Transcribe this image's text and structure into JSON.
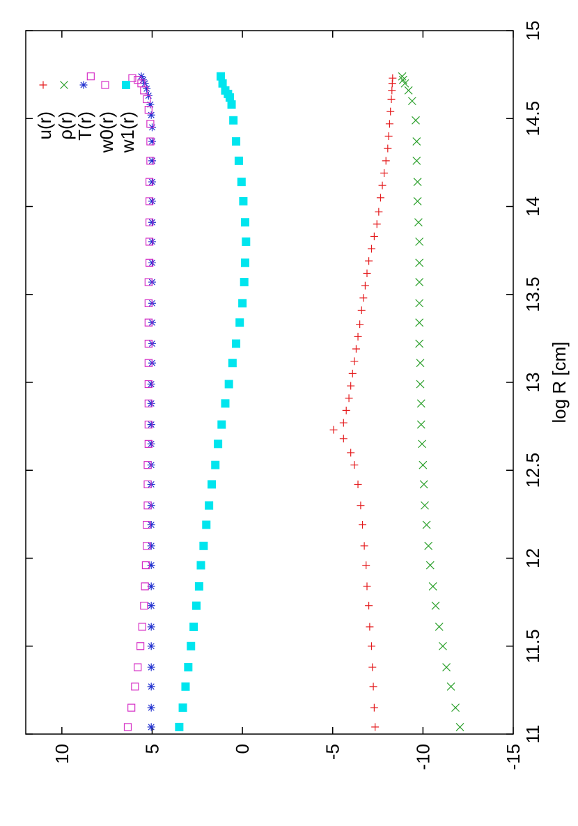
{
  "chart_data": {
    "type": "scatter",
    "rotated": "90deg clockwise (page in landscape orientation)",
    "xlabel": "log R [cm]",
    "ylabel": "",
    "xlim": [
      11,
      15
    ],
    "ylim": [
      -15,
      12
    ],
    "xticks": [
      "11",
      "11.5",
      "12",
      "12.5",
      "13",
      "13.5",
      "14",
      "14.5",
      "15"
    ],
    "yticks": [
      "-15",
      "-10",
      "-5",
      "0",
      "5",
      "10"
    ],
    "legend_position": "top-right",
    "series": [
      {
        "name": "u(r)",
        "marker": "plus",
        "color": "#e41a1c",
        "x": [
          11.04,
          11.15,
          11.27,
          11.38,
          11.5,
          11.61,
          11.73,
          11.84,
          11.96,
          12.07,
          12.19,
          12.3,
          12.42,
          12.53,
          12.6,
          12.68,
          12.73,
          12.77,
          12.84,
          12.91,
          12.98,
          13.05,
          13.12,
          13.19,
          13.26,
          13.33,
          13.41,
          13.48,
          13.55,
          13.62,
          13.69,
          13.76,
          13.83,
          13.9,
          13.97,
          14.05,
          14.12,
          14.19,
          14.26,
          14.33,
          14.4,
          14.47,
          14.54,
          14.61,
          14.66,
          14.7,
          14.73
        ],
        "y": [
          -7.35,
          -7.3,
          -7.25,
          -7.2,
          -7.15,
          -7.05,
          -7.0,
          -6.9,
          -6.85,
          -6.75,
          -6.65,
          -6.55,
          -6.4,
          -6.2,
          -6.0,
          -5.6,
          -5.05,
          -5.6,
          -5.75,
          -5.9,
          -6.0,
          -6.1,
          -6.2,
          -6.3,
          -6.4,
          -6.5,
          -6.6,
          -6.7,
          -6.8,
          -6.9,
          -7.0,
          -7.15,
          -7.3,
          -7.45,
          -7.55,
          -7.65,
          -7.75,
          -7.85,
          -7.95,
          -8.05,
          -8.1,
          -8.15,
          -8.2,
          -8.25,
          -8.28,
          -8.3,
          -8.32
        ]
      },
      {
        "name": "ρ(r)",
        "marker": "cross",
        "color": "#2ca02c",
        "x": [
          11.04,
          11.15,
          11.27,
          11.38,
          11.5,
          11.61,
          11.73,
          11.84,
          11.96,
          12.07,
          12.19,
          12.3,
          12.42,
          12.53,
          12.65,
          12.76,
          12.88,
          12.99,
          13.11,
          13.22,
          13.34,
          13.45,
          13.57,
          13.68,
          13.8,
          13.91,
          14.03,
          14.14,
          14.26,
          14.37,
          14.49,
          14.6,
          14.66,
          14.7,
          14.72,
          14.74
        ],
        "y": [
          -12.05,
          -11.8,
          -11.55,
          -11.3,
          -11.1,
          -10.9,
          -10.7,
          -10.55,
          -10.4,
          -10.3,
          -10.2,
          -10.1,
          -10.05,
          -10.0,
          -9.95,
          -9.9,
          -9.9,
          -9.85,
          -9.85,
          -9.8,
          -9.8,
          -9.8,
          -9.8,
          -9.8,
          -9.8,
          -9.75,
          -9.7,
          -9.7,
          -9.65,
          -9.65,
          -9.6,
          -9.4,
          -9.2,
          -9.0,
          -8.9,
          -8.85
        ]
      },
      {
        "name": "T(r)",
        "marker": "star",
        "color": "#1f2fcf",
        "x": [
          11.04,
          11.15,
          11.27,
          11.38,
          11.5,
          11.61,
          11.73,
          11.84,
          11.96,
          12.07,
          12.19,
          12.3,
          12.42,
          12.53,
          12.65,
          12.76,
          12.88,
          12.99,
          13.11,
          13.22,
          13.34,
          13.45,
          13.57,
          13.68,
          13.8,
          13.91,
          14.03,
          14.14,
          14.26,
          14.37,
          14.45,
          14.52,
          14.58,
          14.63,
          14.67,
          14.7,
          14.72,
          14.74
        ],
        "y": [
          5.05,
          5.05,
          5.05,
          5.05,
          5.05,
          5.05,
          5.05,
          5.05,
          5.05,
          5.05,
          5.05,
          5.05,
          5.05,
          5.05,
          5.05,
          5.05,
          5.05,
          5.05,
          5.0,
          5.0,
          5.0,
          5.0,
          5.0,
          5.0,
          5.0,
          5.0,
          5.0,
          5.0,
          5.0,
          5.0,
          5.0,
          5.05,
          5.1,
          5.2,
          5.3,
          5.4,
          5.5,
          5.6
        ]
      },
      {
        "name": "w0(r)",
        "marker": "square-open",
        "color": "#d62fc6",
        "x": [
          11.04,
          11.15,
          11.27,
          11.38,
          11.5,
          11.61,
          11.73,
          11.84,
          11.96,
          12.07,
          12.19,
          12.3,
          12.42,
          12.53,
          12.65,
          12.76,
          12.88,
          12.99,
          13.11,
          13.22,
          13.34,
          13.45,
          13.57,
          13.68,
          13.8,
          13.91,
          14.03,
          14.14,
          14.26,
          14.37,
          14.47,
          14.55,
          14.61,
          14.66,
          14.7,
          14.72,
          14.73,
          14.74
        ],
        "y": [
          6.35,
          6.15,
          5.95,
          5.8,
          5.65,
          5.55,
          5.45,
          5.4,
          5.35,
          5.3,
          5.3,
          5.25,
          5.25,
          5.25,
          5.2,
          5.2,
          5.2,
          5.2,
          5.2,
          5.2,
          5.2,
          5.2,
          5.2,
          5.15,
          5.15,
          5.15,
          5.15,
          5.15,
          5.1,
          5.1,
          5.1,
          5.2,
          5.3,
          5.45,
          5.6,
          5.8,
          6.1,
          8.4
        ]
      },
      {
        "name": "w1(r)",
        "marker": "square-filled",
        "color": "#00e5ee",
        "x": [
          11.04,
          11.15,
          11.27,
          11.38,
          11.5,
          11.61,
          11.73,
          11.84,
          11.96,
          12.07,
          12.19,
          12.3,
          12.42,
          12.53,
          12.65,
          12.76,
          12.88,
          12.99,
          13.11,
          13.22,
          13.34,
          13.45,
          13.57,
          13.68,
          13.8,
          13.91,
          14.03,
          14.14,
          14.26,
          14.37,
          14.49,
          14.58,
          14.62,
          14.64,
          14.66,
          14.7,
          14.74
        ],
        "y": [
          3.5,
          3.3,
          3.15,
          3.0,
          2.85,
          2.7,
          2.55,
          2.4,
          2.3,
          2.15,
          2.0,
          1.85,
          1.7,
          1.5,
          1.35,
          1.15,
          0.95,
          0.75,
          0.55,
          0.35,
          0.15,
          0.0,
          -0.1,
          -0.15,
          -0.2,
          -0.15,
          -0.05,
          0.05,
          0.2,
          0.35,
          0.5,
          0.6,
          0.7,
          0.8,
          0.95,
          1.1,
          1.2
        ]
      }
    ]
  }
}
